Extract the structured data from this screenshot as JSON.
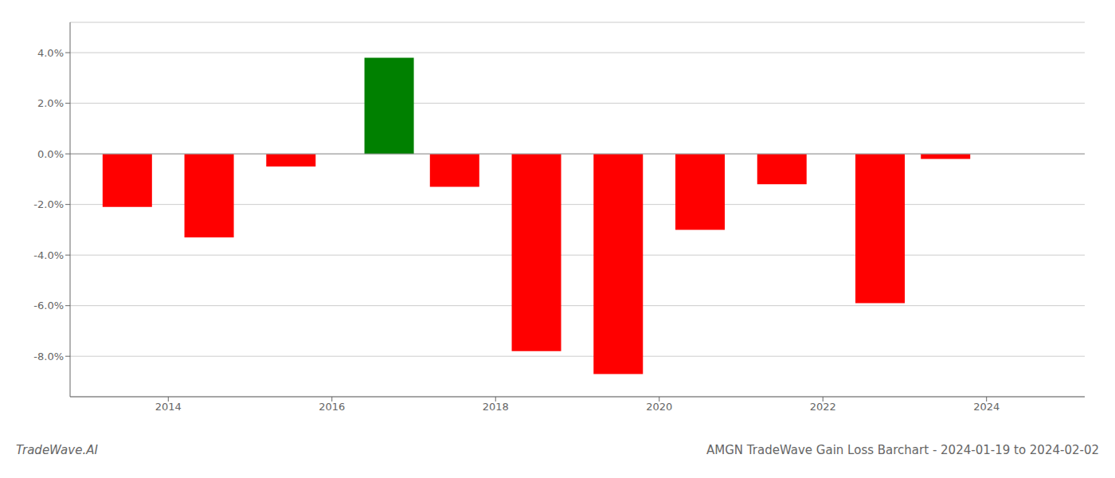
{
  "chart_data": {
    "type": "bar",
    "title": "AMGN TradeWave Gain Loss Barchart - 2024-01-19 to 2024-02-02",
    "annotations": [
      "TradeWave.AI"
    ],
    "x": [
      2013.5,
      2014.5,
      2015.5,
      2016.7,
      2017.5,
      2018.5,
      2019.5,
      2020.5,
      2021.5,
      2022.7,
      2023.5
    ],
    "values": [
      -0.021,
      -0.033,
      -0.005,
      0.038,
      -0.013,
      -0.078,
      -0.087,
      -0.03,
      -0.012,
      -0.059,
      -0.002
    ],
    "colors": [
      "#ff0000",
      "#ff0000",
      "#ff0000",
      "#008000",
      "#ff0000",
      "#ff0000",
      "#ff0000",
      "#ff0000",
      "#ff0000",
      "#ff0000",
      "#ff0000"
    ],
    "xlim": [
      2012.8,
      2025.2
    ],
    "xticks": [
      2014,
      2016,
      2018,
      2020,
      2022,
      2024
    ],
    "ylim": [
      -0.096,
      0.052
    ],
    "yticks": [
      {
        "value": -0.08,
        "label": "-8.0%"
      },
      {
        "value": -0.06,
        "label": "-6.0%"
      },
      {
        "value": -0.04,
        "label": "-4.0%"
      },
      {
        "value": -0.02,
        "label": "-2.0%"
      },
      {
        "value": 0.0,
        "label": "0.0%"
      },
      {
        "value": 0.02,
        "label": "2.0%"
      },
      {
        "value": 0.04,
        "label": "4.0%"
      }
    ],
    "grid": true
  }
}
